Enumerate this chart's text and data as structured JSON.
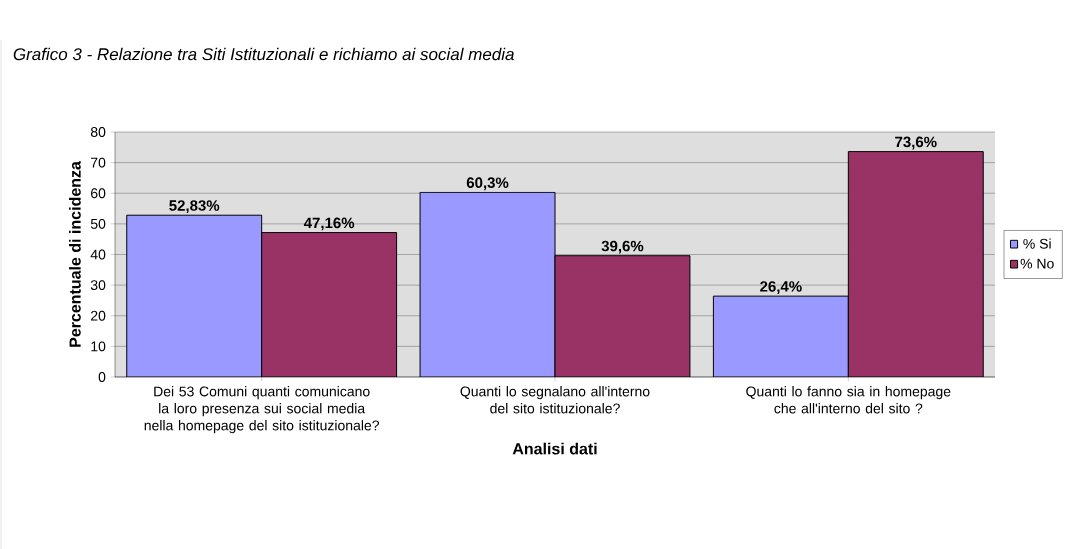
{
  "chart_data": {
    "type": "bar",
    "title": "Grafico 3 - Relazione tra Siti Istituzionali e richiamo ai social media",
    "xlabel": "Analisi dati",
    "ylabel": "Percentuale di incidenza",
    "categories": [
      "Dei 53 Comuni quanti comunicano la loro presenza sui social media nella homepage del sito istituzionale?",
      "Quanti lo segnalano all'interno del sito istituzionale?",
      "Quanti lo fanno sia in homepage che all'interno del sito ?"
    ],
    "series": [
      {
        "name": "% Si",
        "color": "#9999ff",
        "values": [
          52.83,
          60.3,
          26.4
        ],
        "value_labels": [
          "52,83%",
          "60,3%",
          "26,4%"
        ]
      },
      {
        "name": "% No",
        "color": "#993366",
        "values": [
          47.16,
          39.6,
          73.6
        ],
        "value_labels": [
          "47,16%",
          "39,6%",
          "73,6%"
        ]
      }
    ],
    "ylim": [
      0,
      80
    ],
    "yticks": [
      0,
      10,
      20,
      30,
      40,
      50,
      60,
      70,
      80
    ],
    "grid": "y",
    "legend": "right"
  }
}
